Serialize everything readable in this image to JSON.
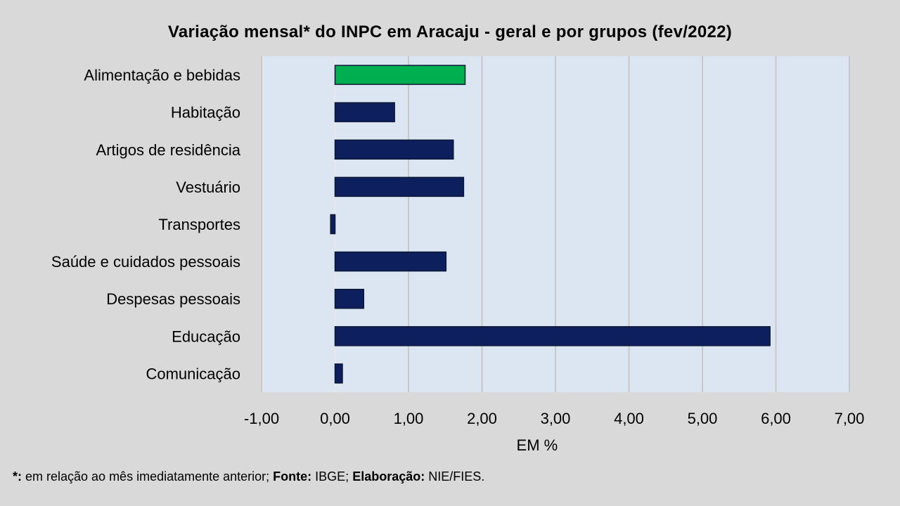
{
  "chart_data": {
    "type": "bar",
    "orientation": "horizontal",
    "title": "Variação  mensal*  do INPC em Aracaju  - geral e por grupos  (fev/2022)",
    "xlabel": "EM %",
    "ylabel": "",
    "xlim": [
      -1,
      7
    ],
    "x_ticks": [
      -1,
      0,
      1,
      2,
      3,
      4,
      5,
      6,
      7
    ],
    "x_tick_labels": [
      "-1,00",
      "0,00",
      "1,00",
      "2,00",
      "3,00",
      "4,00",
      "5,00",
      "6,00",
      "7,00"
    ],
    "grid": true,
    "legend": "none",
    "categories": [
      "Alimentação e bebidas",
      "Habitação",
      "Artigos de residência",
      "Vestuário",
      "Transportes",
      "Saúde e cuidados pessoais",
      "Despesas pessoais",
      "Educação",
      "Comunicação"
    ],
    "values": [
      1.77,
      0.81,
      1.61,
      1.75,
      -0.06,
      1.51,
      0.39,
      5.92,
      0.1
    ],
    "bar_colors": [
      "#00b050",
      "#0d1f5c",
      "#0d1f5c",
      "#0d1f5c",
      "#0d1f5c",
      "#0d1f5c",
      "#0d1f5c",
      "#0d1f5c",
      "#0d1f5c"
    ]
  },
  "colors": {
    "background": "#d9d9d9",
    "plot_area": "#dce6f2",
    "gridline": "#c8c8c8",
    "bar_outline": "#0b1736"
  },
  "footnote": {
    "star_label": "*:",
    "star_text": " em relação ao mês imediatamente  anterior; ",
    "source_label": "Fonte:",
    "source_text": " IBGE; ",
    "author_label": "Elaboração:",
    "author_text": " NIE/FIES."
  }
}
